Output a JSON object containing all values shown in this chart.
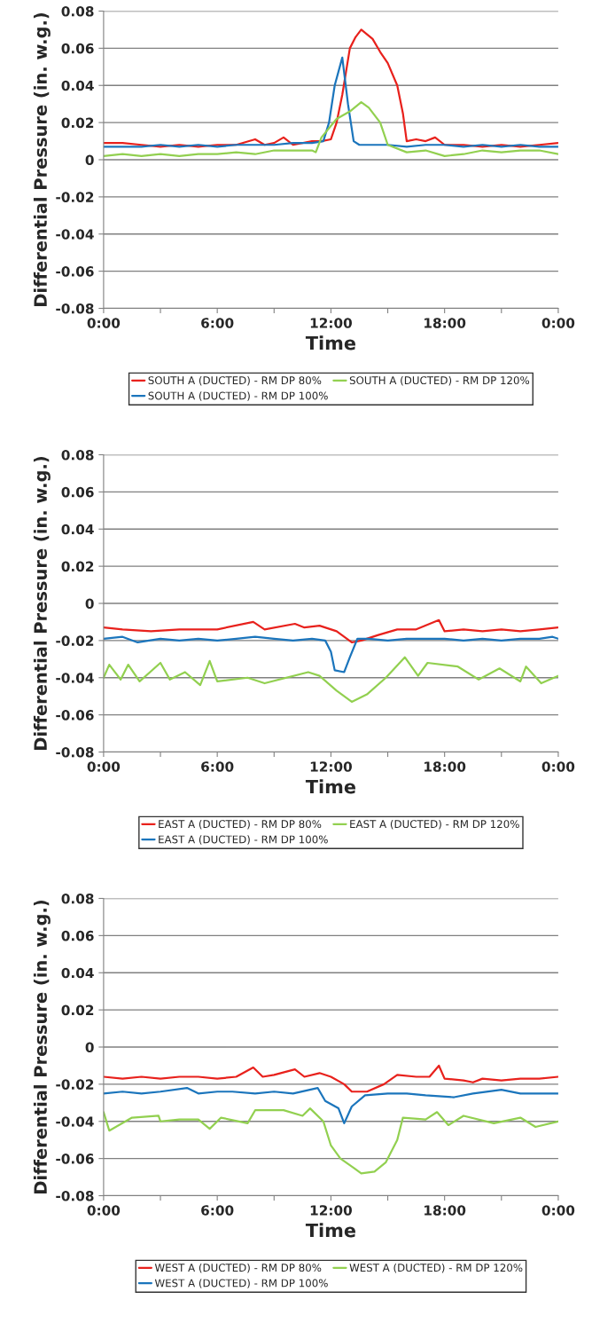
{
  "chart_data": [
    {
      "type": "line",
      "xlabel": "Time",
      "ylabel": "Differential Pressure (in. w.g.)",
      "xlim": [
        0,
        24
      ],
      "xticks": [
        {
          "value": 0,
          "label": "0:00"
        },
        {
          "value": 3,
          "label": null
        },
        {
          "value": 6,
          "label": "6:00"
        },
        {
          "value": 9,
          "label": null
        },
        {
          "value": 12,
          "label": "12:00"
        },
        {
          "value": 15,
          "label": null
        },
        {
          "value": 18,
          "label": "18:00"
        },
        {
          "value": 21,
          "label": null
        },
        {
          "value": 24,
          "label": "0:00"
        }
      ],
      "ylim": [
        -0.08,
        0.08
      ],
      "yticks": [
        -0.08,
        -0.06,
        -0.04,
        -0.02,
        0,
        0.02,
        0.04,
        0.06,
        0.08
      ],
      "grid": "y",
      "legend": "bottom",
      "line_style": "solid",
      "marker": "none",
      "series": [
        {
          "name": "SOUTH A (DUCTED) - RM DP 80%",
          "color": "#e8211c",
          "x": [
            0,
            1,
            2,
            3,
            4,
            5,
            6,
            7,
            8,
            8.5,
            9,
            9.5,
            10,
            11,
            11.5,
            12,
            12.3,
            12.6,
            13,
            13.3,
            13.6,
            14.2,
            14.6,
            15,
            15.5,
            15.8,
            16,
            16.5,
            17,
            17.5,
            18,
            19,
            20,
            21,
            22,
            23,
            24
          ],
          "values": [
            0.009,
            0.009,
            0.008,
            0.007,
            0.008,
            0.007,
            0.008,
            0.008,
            0.011,
            0.008,
            0.009,
            0.012,
            0.008,
            0.01,
            0.01,
            0.011,
            0.02,
            0.035,
            0.06,
            0.066,
            0.07,
            0.065,
            0.058,
            0.052,
            0.04,
            0.025,
            0.01,
            0.011,
            0.01,
            0.012,
            0.008,
            0.008,
            0.007,
            0.008,
            0.007,
            0.008,
            0.009
          ]
        },
        {
          "name": "SOUTH A (DUCTED) - RM DP 100%",
          "color": "#1b75bc",
          "x": [
            0,
            1,
            2,
            3,
            4,
            5,
            6,
            7,
            8,
            9,
            10,
            11,
            11.6,
            11.9,
            12.2,
            12.6,
            12.9,
            13.2,
            13.5,
            14,
            15,
            16,
            17,
            18,
            19,
            20,
            21,
            22,
            23,
            24
          ],
          "values": [
            0.007,
            0.007,
            0.007,
            0.008,
            0.007,
            0.008,
            0.007,
            0.008,
            0.008,
            0.008,
            0.009,
            0.009,
            0.01,
            0.02,
            0.04,
            0.055,
            0.03,
            0.01,
            0.008,
            0.008,
            0.008,
            0.007,
            0.008,
            0.008,
            0.007,
            0.008,
            0.007,
            0.008,
            0.007,
            0.007
          ]
        },
        {
          "name": "SOUTH A (DUCTED) - RM DP 120%",
          "color": "#92d050",
          "x": [
            0,
            1,
            2,
            3,
            4,
            5,
            6,
            7,
            8,
            9,
            10,
            11,
            11.2,
            11.5,
            12.3,
            13,
            13.6,
            14,
            14.6,
            15,
            16,
            17,
            18,
            19,
            20,
            21,
            22,
            23,
            24
          ],
          "values": [
            0.002,
            0.003,
            0.002,
            0.003,
            0.002,
            0.003,
            0.003,
            0.004,
            0.003,
            0.005,
            0.005,
            0.005,
            0.004,
            0.012,
            0.022,
            0.026,
            0.031,
            0.028,
            0.02,
            0.008,
            0.004,
            0.005,
            0.002,
            0.003,
            0.005,
            0.004,
            0.005,
            0.005,
            0.003
          ]
        }
      ]
    },
    {
      "type": "line",
      "xlabel": "Time",
      "ylabel": "Differential Pressure (in. w.g.)",
      "xlim": [
        0,
        24
      ],
      "xticks": [
        {
          "value": 0,
          "label": "0:00"
        },
        {
          "value": 3,
          "label": null
        },
        {
          "value": 6,
          "label": "6:00"
        },
        {
          "value": 9,
          "label": null
        },
        {
          "value": 12,
          "label": "12:00"
        },
        {
          "value": 15,
          "label": null
        },
        {
          "value": 18,
          "label": "18:00"
        },
        {
          "value": 21,
          "label": null
        },
        {
          "value": 24,
          "label": "0:00"
        }
      ],
      "ylim": [
        -0.08,
        0.08
      ],
      "yticks": [
        -0.08,
        -0.06,
        -0.04,
        -0.02,
        0,
        0.02,
        0.04,
        0.06,
        0.08
      ],
      "grid": "y",
      "legend": "bottom",
      "line_style": "solid",
      "marker": "none",
      "series": [
        {
          "name": "EAST A (DUCTED) - RM DP 80%",
          "color": "#e8211c",
          "x": [
            0,
            1,
            2.5,
            4,
            6,
            7.9,
            8.5,
            10.1,
            10.6,
            11.4,
            12.3,
            13.1,
            13.6,
            14.5,
            15.5,
            16.5,
            17.7,
            18,
            19,
            20,
            21,
            22,
            23,
            24
          ],
          "values": [
            -0.013,
            -0.014,
            -0.015,
            -0.014,
            -0.014,
            -0.01,
            -0.014,
            -0.011,
            -0.013,
            -0.012,
            -0.015,
            -0.021,
            -0.02,
            -0.017,
            -0.014,
            -0.014,
            -0.009,
            -0.015,
            -0.014,
            -0.015,
            -0.014,
            -0.015,
            -0.014,
            -0.013
          ]
        },
        {
          "name": "EAST A (DUCTED) - RM DP 100%",
          "color": "#1b75bc",
          "x": [
            0,
            1,
            1.8,
            3,
            4,
            5,
            6,
            7,
            8,
            9,
            10,
            11,
            11.7,
            12,
            12.2,
            12.7,
            13,
            13.4,
            14,
            15,
            16,
            17,
            18,
            19,
            20,
            21,
            22,
            23,
            23.7,
            24
          ],
          "values": [
            -0.019,
            -0.018,
            -0.021,
            -0.019,
            -0.02,
            -0.019,
            -0.02,
            -0.019,
            -0.018,
            -0.019,
            -0.02,
            -0.019,
            -0.02,
            -0.026,
            -0.036,
            -0.037,
            -0.029,
            -0.019,
            -0.019,
            -0.02,
            -0.019,
            -0.019,
            -0.019,
            -0.02,
            -0.019,
            -0.02,
            -0.019,
            -0.019,
            -0.018,
            -0.019
          ]
        },
        {
          "name": "EAST A (DUCTED) - RM DP 120%",
          "color": "#92d050",
          "x": [
            0,
            0.3,
            0.9,
            1.3,
            1.9,
            3,
            3.5,
            4.3,
            5.1,
            5.6,
            6,
            7.6,
            8.5,
            10.8,
            11.4,
            12.3,
            13.1,
            13.9,
            14.9,
            15.9,
            16.6,
            17.1,
            18.7,
            19.8,
            20.9,
            22,
            22.3,
            23.1,
            24
          ],
          "values": [
            -0.04,
            -0.033,
            -0.041,
            -0.033,
            -0.042,
            -0.032,
            -0.041,
            -0.037,
            -0.044,
            -0.031,
            -0.042,
            -0.04,
            -0.043,
            -0.037,
            -0.039,
            -0.047,
            -0.053,
            -0.049,
            -0.04,
            -0.029,
            -0.039,
            -0.032,
            -0.034,
            -0.041,
            -0.035,
            -0.042,
            -0.034,
            -0.043,
            -0.039
          ]
        }
      ]
    },
    {
      "type": "line",
      "xlabel": "Time",
      "ylabel": "Differential Pressure (in. w.g.)",
      "xlim": [
        0,
        24
      ],
      "xticks": [
        {
          "value": 0,
          "label": "0:00"
        },
        {
          "value": 3,
          "label": null
        },
        {
          "value": 6,
          "label": "6:00"
        },
        {
          "value": 9,
          "label": null
        },
        {
          "value": 12,
          "label": "12:00"
        },
        {
          "value": 15,
          "label": null
        },
        {
          "value": 18,
          "label": "18:00"
        },
        {
          "value": 21,
          "label": null
        },
        {
          "value": 24,
          "label": "0:00"
        }
      ],
      "ylim": [
        -0.08,
        0.08
      ],
      "yticks": [
        -0.08,
        -0.06,
        -0.04,
        -0.02,
        0,
        0.02,
        0.04,
        0.06,
        0.08
      ],
      "grid": "y",
      "legend": "bottom",
      "line_style": "solid",
      "marker": "none",
      "series": [
        {
          "name": "WEST A (DUCTED) - RM DP 80%",
          "color": "#e8211c",
          "x": [
            0,
            1,
            2,
            3,
            4,
            5,
            6,
            7,
            7.9,
            8.4,
            9,
            10.1,
            10.6,
            11.4,
            12,
            12.7,
            13.1,
            13.9,
            14.8,
            15.5,
            16.5,
            17.2,
            17.7,
            18,
            19,
            19.5,
            20,
            21,
            22,
            23,
            24
          ],
          "values": [
            -0.016,
            -0.017,
            -0.016,
            -0.017,
            -0.016,
            -0.016,
            -0.017,
            -0.016,
            -0.011,
            -0.016,
            -0.015,
            -0.012,
            -0.016,
            -0.014,
            -0.016,
            -0.02,
            -0.024,
            -0.024,
            -0.02,
            -0.015,
            -0.016,
            -0.016,
            -0.01,
            -0.017,
            -0.018,
            -0.019,
            -0.017,
            -0.018,
            -0.017,
            -0.017,
            -0.016
          ]
        },
        {
          "name": "WEST A (DUCTED) - RM DP 100%",
          "color": "#1b75bc",
          "x": [
            0,
            1,
            2,
            3,
            4.4,
            5,
            6,
            6.8,
            8,
            9,
            10,
            11.3,
            11.7,
            12.4,
            12.7,
            13.1,
            13.8,
            15,
            16,
            17,
            18.5,
            19.5,
            21,
            22,
            23,
            24
          ],
          "values": [
            -0.025,
            -0.024,
            -0.025,
            -0.024,
            -0.022,
            -0.025,
            -0.024,
            -0.024,
            -0.025,
            -0.024,
            -0.025,
            -0.022,
            -0.029,
            -0.033,
            -0.041,
            -0.032,
            -0.026,
            -0.025,
            -0.025,
            -0.026,
            -0.027,
            -0.025,
            -0.023,
            -0.025,
            -0.025,
            -0.025
          ]
        },
        {
          "name": "WEST A (DUCTED) - RM DP 120%",
          "color": "#92d050",
          "x": [
            0,
            0.3,
            1.5,
            2.9,
            3,
            4,
            5,
            5.6,
            6.2,
            7.6,
            8,
            9.5,
            10.5,
            10.9,
            11.6,
            12,
            12.5,
            13.2,
            13.6,
            14.3,
            14.9,
            15.5,
            15.8,
            17,
            17.6,
            18.2,
            19,
            20.6,
            22,
            22.8,
            24
          ],
          "values": [
            -0.035,
            -0.045,
            -0.038,
            -0.037,
            -0.04,
            -0.039,
            -0.039,
            -0.044,
            -0.038,
            -0.041,
            -0.034,
            -0.034,
            -0.037,
            -0.033,
            -0.04,
            -0.053,
            -0.06,
            -0.065,
            -0.068,
            -0.067,
            -0.062,
            -0.05,
            -0.038,
            -0.039,
            -0.035,
            -0.042,
            -0.037,
            -0.041,
            -0.038,
            -0.043,
            -0.04
          ]
        }
      ]
    }
  ]
}
